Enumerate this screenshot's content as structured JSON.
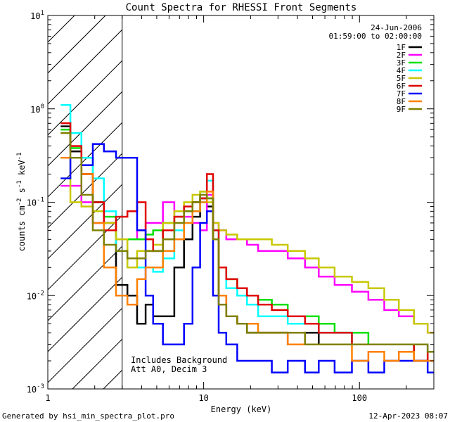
{
  "chart_data": {
    "type": "line",
    "title": "Count Spectra for RHESSI Front Segments",
    "xlabel": "Energy (keV)",
    "ylabel_parts": [
      "counts cm",
      "-2",
      " s",
      "-1",
      " keV",
      "-1"
    ],
    "x_scale": "log",
    "y_scale": "log",
    "xlim": [
      1,
      300
    ],
    "ylim": [
      0.001,
      10
    ],
    "x_ticks": [
      {
        "value": 1,
        "label": "1"
      },
      {
        "value": 10,
        "label": "10"
      },
      {
        "value": 100,
        "label": "100"
      }
    ],
    "y_ticks": [
      {
        "value": 0.001,
        "base": "10",
        "exp": "-3"
      },
      {
        "value": 0.01,
        "base": "10",
        "exp": "-2"
      },
      {
        "value": 0.1,
        "base": "10",
        "exp": "-1"
      },
      {
        "value": 1,
        "base": "10",
        "exp": "0"
      },
      {
        "value": 10,
        "base": "10",
        "exp": "1"
      }
    ],
    "shaded_region_keV": [
      1,
      3
    ],
    "legend_header": [
      "24-Jun-2006",
      "01:59:00 to 02:00:00"
    ],
    "annotations": [
      "Includes Background",
      "Att A0, Decim 3"
    ],
    "series": [
      {
        "name": "1F",
        "color": "#000000",
        "x": [
          1.3,
          1.5,
          1.8,
          2.1,
          2.5,
          3.0,
          3.5,
          4.0,
          4.5,
          5.0,
          6.0,
          7.0,
          8.0,
          9.0,
          10.0,
          11.0,
          12.0,
          13.0,
          15.0,
          18.0,
          20.0,
          25.0,
          30.0,
          40.0,
          50.0,
          60.0,
          80.0,
          100.0,
          130.0,
          160.0,
          200.0,
          250.0,
          300.0
        ],
        "y": [
          0.65,
          0.35,
          0.2,
          0.1,
          0.06,
          0.013,
          0.01,
          0.005,
          0.008,
          0.006,
          0.006,
          0.02,
          0.04,
          0.07,
          0.11,
          0.09,
          0.04,
          0.01,
          0.006,
          0.005,
          0.004,
          0.004,
          0.004,
          0.003,
          0.004,
          0.003,
          0.003,
          0.003,
          0.003,
          0.003,
          0.003,
          0.003,
          0.0025
        ]
      },
      {
        "name": "2F",
        "color": "#ff00ff",
        "x": [
          1.3,
          1.5,
          1.8,
          2.1,
          2.5,
          3.0,
          3.5,
          4.0,
          4.5,
          5.0,
          6.0,
          7.0,
          8.0,
          9.0,
          10.0,
          11.0,
          12.0,
          13.0,
          15.0,
          18.0,
          20.0,
          25.0,
          30.0,
          40.0,
          50.0,
          60.0,
          80.0,
          100.0,
          130.0,
          160.0,
          200.0,
          250.0,
          300.0
        ],
        "y": [
          0.15,
          0.15,
          0.1,
          0.06,
          0.06,
          0.04,
          0.04,
          0.05,
          0.06,
          0.06,
          0.1,
          0.07,
          0.07,
          0.06,
          0.05,
          0.12,
          0.06,
          0.05,
          0.04,
          0.04,
          0.035,
          0.03,
          0.03,
          0.025,
          0.02,
          0.016,
          0.013,
          0.011,
          0.009,
          0.007,
          0.006,
          0.005,
          0.004
        ]
      },
      {
        "name": "3F",
        "color": "#00e000",
        "x": [
          1.3,
          1.5,
          1.8,
          2.1,
          2.5,
          3.0,
          3.5,
          4.0,
          4.5,
          5.0,
          6.0,
          7.0,
          8.0,
          9.0,
          10.0,
          11.0,
          12.0,
          13.0,
          15.0,
          18.0,
          20.0,
          25.0,
          30.0,
          40.0,
          50.0,
          60.0,
          80.0,
          100.0,
          130.0,
          160.0,
          200.0,
          250.0,
          300.0
        ],
        "y": [
          0.6,
          0.38,
          0.3,
          0.1,
          0.07,
          0.04,
          0.04,
          0.04,
          0.045,
          0.05,
          0.06,
          0.07,
          0.08,
          0.1,
          0.13,
          0.11,
          0.04,
          0.02,
          0.015,
          0.012,
          0.01,
          0.009,
          0.008,
          0.006,
          0.006,
          0.005,
          0.004,
          0.004,
          0.003,
          0.003,
          0.003,
          0.002,
          0.0025
        ]
      },
      {
        "name": "4F",
        "color": "#00ffff",
        "x": [
          1.3,
          1.5,
          1.8,
          2.1,
          2.5,
          3.0,
          3.5,
          4.0,
          4.5,
          5.0,
          6.0,
          7.0,
          8.0,
          9.0,
          10.0,
          11.0,
          12.0,
          13.0,
          15.0,
          18.0,
          20.0,
          25.0,
          30.0,
          40.0,
          50.0,
          60.0,
          80.0,
          100.0,
          130.0,
          160.0,
          200.0,
          250.0,
          300.0
        ],
        "y": [
          1.1,
          0.55,
          0.3,
          0.18,
          0.08,
          0.03,
          0.02,
          0.02,
          0.02,
          0.018,
          0.025,
          0.05,
          0.06,
          0.08,
          0.1,
          0.17,
          0.05,
          0.02,
          0.012,
          0.01,
          0.008,
          0.006,
          0.006,
          0.005,
          0.005,
          0.004,
          0.004,
          0.003,
          0.003,
          0.003,
          0.003,
          0.003,
          0.0025
        ]
      },
      {
        "name": "5F",
        "color": "#c8c800",
        "x": [
          1.3,
          1.5,
          1.8,
          2.1,
          2.5,
          3.0,
          3.5,
          4.0,
          4.5,
          5.0,
          6.0,
          7.0,
          8.0,
          9.0,
          10.0,
          11.0,
          12.0,
          13.0,
          15.0,
          18.0,
          20.0,
          25.0,
          30.0,
          40.0,
          50.0,
          60.0,
          80.0,
          100.0,
          130.0,
          160.0,
          200.0,
          250.0,
          300.0
        ],
        "y": [
          0.3,
          0.1,
          0.09,
          0.08,
          0.06,
          0.04,
          0.02,
          0.03,
          0.03,
          0.035,
          0.06,
          0.08,
          0.1,
          0.12,
          0.13,
          0.1,
          0.06,
          0.05,
          0.045,
          0.04,
          0.04,
          0.04,
          0.035,
          0.03,
          0.025,
          0.02,
          0.016,
          0.014,
          0.012,
          0.009,
          0.007,
          0.005,
          0.004
        ]
      },
      {
        "name": "6F",
        "color": "#e00000",
        "x": [
          1.3,
          1.5,
          1.8,
          2.1,
          2.5,
          3.0,
          3.5,
          4.0,
          4.5,
          5.0,
          6.0,
          7.0,
          8.0,
          9.0,
          10.0,
          11.0,
          12.0,
          13.0,
          15.0,
          18.0,
          20.0,
          25.0,
          30.0,
          40.0,
          50.0,
          60.0,
          80.0,
          100.0,
          130.0,
          160.0,
          200.0,
          250.0,
          300.0
        ],
        "y": [
          0.7,
          0.4,
          0.2,
          0.1,
          0.05,
          0.07,
          0.08,
          0.1,
          0.04,
          0.03,
          0.05,
          0.07,
          0.09,
          0.1,
          0.11,
          0.2,
          0.05,
          0.02,
          0.015,
          0.012,
          0.01,
          0.008,
          0.007,
          0.006,
          0.005,
          0.004,
          0.004,
          0.003,
          0.003,
          0.003,
          0.003,
          0.002,
          0.0025
        ]
      },
      {
        "name": "7F",
        "color": "#0000ff",
        "x": [
          1.3,
          1.5,
          1.8,
          2.1,
          2.5,
          3.0,
          3.5,
          4.0,
          4.5,
          5.0,
          6.0,
          7.0,
          8.0,
          9.0,
          10.0,
          11.0,
          12.0,
          13.0,
          15.0,
          18.0,
          20.0,
          25.0,
          30.0,
          40.0,
          50.0,
          60.0,
          80.0,
          100.0,
          130.0,
          160.0,
          200.0,
          250.0,
          300.0
        ],
        "y": [
          0.18,
          0.3,
          0.25,
          0.42,
          0.35,
          0.3,
          0.3,
          0.05,
          0.01,
          0.005,
          0.003,
          0.003,
          0.005,
          0.02,
          0.06,
          0.08,
          0.01,
          0.004,
          0.003,
          0.002,
          0.002,
          0.002,
          0.0015,
          0.002,
          0.0015,
          0.002,
          0.0015,
          0.002,
          0.0015,
          0.002,
          0.002,
          0.002,
          0.0015
        ]
      },
      {
        "name": "8F",
        "color": "#ff8000",
        "x": [
          1.3,
          1.5,
          1.8,
          2.1,
          2.5,
          3.0,
          3.5,
          4.0,
          4.5,
          5.0,
          6.0,
          7.0,
          8.0,
          9.0,
          10.0,
          11.0,
          12.0,
          13.0,
          15.0,
          18.0,
          20.0,
          25.0,
          30.0,
          40.0,
          50.0,
          60.0,
          80.0,
          100.0,
          130.0,
          160.0,
          200.0,
          250.0,
          300.0
        ],
        "y": [
          0.3,
          0.3,
          0.2,
          0.06,
          0.02,
          0.01,
          0.008,
          0.015,
          0.02,
          0.02,
          0.03,
          0.04,
          0.06,
          0.08,
          0.1,
          0.13,
          0.04,
          0.01,
          0.006,
          0.005,
          0.005,
          0.004,
          0.004,
          0.003,
          0.003,
          0.003,
          0.003,
          0.002,
          0.0025,
          0.002,
          0.0025,
          0.002,
          0.002
        ]
      },
      {
        "name": "9F",
        "color": "#808000",
        "x": [
          1.3,
          1.5,
          1.8,
          2.1,
          2.5,
          3.0,
          3.5,
          4.0,
          4.5,
          5.0,
          6.0,
          7.0,
          8.0,
          9.0,
          10.0,
          11.0,
          12.0,
          13.0,
          15.0,
          18.0,
          20.0,
          25.0,
          30.0,
          40.0,
          50.0,
          60.0,
          80.0,
          100.0,
          130.0,
          160.0,
          200.0,
          250.0,
          300.0
        ],
        "y": [
          0.55,
          0.3,
          0.12,
          0.05,
          0.035,
          0.03,
          0.025,
          0.025,
          0.03,
          0.03,
          0.04,
          0.06,
          0.08,
          0.1,
          0.12,
          0.11,
          0.04,
          0.008,
          0.006,
          0.005,
          0.004,
          0.004,
          0.004,
          0.004,
          0.003,
          0.003,
          0.003,
          0.003,
          0.003,
          0.003,
          0.003,
          0.003,
          0.0025
        ]
      }
    ]
  },
  "footer": {
    "generated_by": "Generated by hsi_min_spectra_plot.pro",
    "timestamp": "12-Apr-2023 08:07"
  }
}
